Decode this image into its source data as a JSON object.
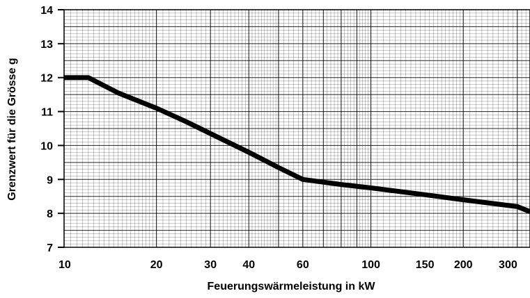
{
  "chart_data": {
    "type": "line",
    "xlabel": "Feuerungswärmeleistung in kW",
    "ylabel": "Grenzwert für die Grösse g",
    "x_scale": "log",
    "xlim": [
      10,
      330
    ],
    "ylim": [
      7,
      14
    ],
    "grid": true,
    "x_ticks": [
      10,
      20,
      30,
      40,
      60,
      100,
      150,
      200,
      300
    ],
    "x_tick_labels": [
      "10",
      "20",
      "30",
      "40",
      "60",
      "100",
      "150",
      "200",
      "300"
    ],
    "y_ticks": [
      7,
      8,
      9,
      10,
      11,
      12,
      13,
      14
    ],
    "y_tick_labels": [
      "7",
      "8",
      "9",
      "10",
      "11",
      "12",
      "13",
      "14"
    ],
    "series": [
      {
        "x": [
          10,
          12,
          15,
          20,
          25,
          30,
          40,
          50,
          60,
          80,
          100,
          150,
          200,
          300,
          330
        ],
        "y": [
          12.0,
          12.0,
          11.55,
          11.1,
          10.7,
          10.35,
          9.8,
          9.35,
          9.0,
          8.85,
          8.75,
          8.55,
          8.4,
          8.2,
          8.05
        ]
      }
    ],
    "color_line": "#000000",
    "color_grid": "#000000"
  }
}
